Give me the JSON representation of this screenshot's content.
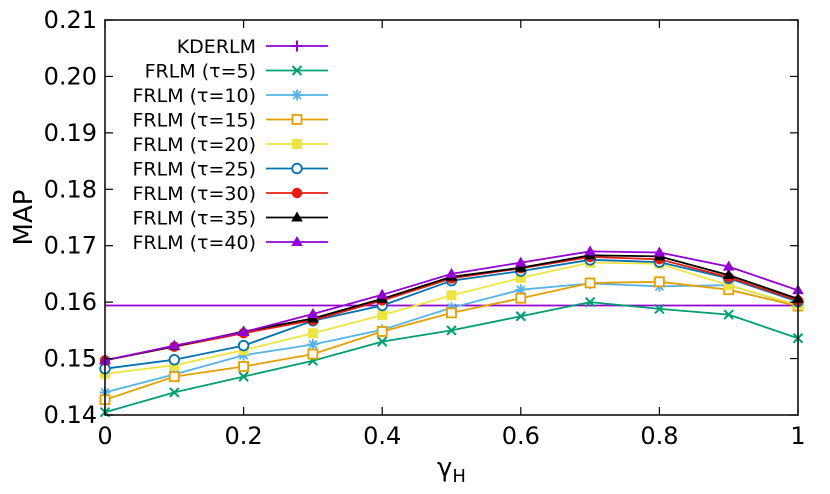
{
  "chart_data": {
    "type": "line",
    "title": "",
    "xlabel": "γ",
    "xlabel_sub": "H",
    "ylabel": "MAP",
    "xlim": [
      0,
      1
    ],
    "ylim": [
      0.14,
      0.21
    ],
    "xticks": [
      0,
      0.2,
      0.4,
      0.6,
      0.8,
      1
    ],
    "xtick_labels": [
      "0",
      "0.2",
      "0.4",
      "0.6",
      "0.8",
      "1"
    ],
    "yticks": [
      0.14,
      0.15,
      0.16,
      0.17,
      0.18,
      0.19,
      0.2,
      0.21
    ],
    "ytick_labels": [
      "0.14",
      "0.15",
      "0.16",
      "0.17",
      "0.18",
      "0.19",
      "0.20",
      "0.21"
    ],
    "grid": false,
    "legend_position": "top-left",
    "x": [
      0,
      0.1,
      0.2,
      0.3,
      0.4,
      0.5,
      0.6,
      0.7,
      0.8,
      0.9,
      1.0
    ],
    "series": [
      {
        "name": "KDERLM",
        "color": "#9400d3",
        "marker": "plus",
        "baseline": true,
        "values": [
          0.1594,
          0.1594,
          0.1594,
          0.1594,
          0.1594,
          0.1594,
          0.1594,
          0.1594,
          0.1594,
          0.1594,
          0.1594
        ]
      },
      {
        "name": "FRLM (τ=5)",
        "color": "#009e73",
        "marker": "cross",
        "values": [
          0.1405,
          0.144,
          0.1468,
          0.1496,
          0.153,
          0.155,
          0.1575,
          0.16,
          0.1588,
          0.1578,
          0.1536
        ]
      },
      {
        "name": "FRLM (τ=10)",
        "color": "#56b4e9",
        "marker": "star",
        "values": [
          0.144,
          0.1472,
          0.1506,
          0.1525,
          0.1551,
          0.159,
          0.1622,
          0.1633,
          0.1628,
          0.163,
          0.1594
        ]
      },
      {
        "name": "FRLM (τ=15)",
        "color": "#e69f00",
        "marker": "square-open",
        "values": [
          0.1427,
          0.1468,
          0.1486,
          0.1508,
          0.1548,
          0.1581,
          0.1607,
          0.1634,
          0.1636,
          0.1622,
          0.1593
        ]
      },
      {
        "name": "FRLM (τ=20)",
        "color": "#f0e442",
        "marker": "square-filled",
        "values": [
          0.1473,
          0.1488,
          0.1515,
          0.1545,
          0.1577,
          0.1612,
          0.1643,
          0.167,
          0.1668,
          0.163,
          0.1595
        ]
      },
      {
        "name": "FRLM (τ=25)",
        "color": "#0072b2",
        "marker": "circle-open",
        "values": [
          0.1482,
          0.1498,
          0.1523,
          0.1567,
          0.1594,
          0.1638,
          0.1655,
          0.1675,
          0.1671,
          0.1642,
          0.1601
        ]
      },
      {
        "name": "FRLM (τ=30)",
        "color": "#e51e10",
        "marker": "circle-filled",
        "values": [
          0.1497,
          0.1521,
          0.1545,
          0.1568,
          0.1603,
          0.1642,
          0.166,
          0.168,
          0.1676,
          0.1644,
          0.1603
        ]
      },
      {
        "name": "FRLM (τ=35)",
        "color": "#000000",
        "marker": "triangle",
        "values": [
          0.1497,
          0.1522,
          0.1548,
          0.1571,
          0.1606,
          0.1645,
          0.1661,
          0.1683,
          0.1681,
          0.1648,
          0.1606
        ]
      },
      {
        "name": "FRLM (τ=40)",
        "color": "#9400d3",
        "marker": "triangle",
        "values": [
          0.1497,
          0.1523,
          0.1547,
          0.1579,
          0.1613,
          0.165,
          0.167,
          0.169,
          0.1688,
          0.1663,
          0.1621
        ]
      }
    ]
  }
}
